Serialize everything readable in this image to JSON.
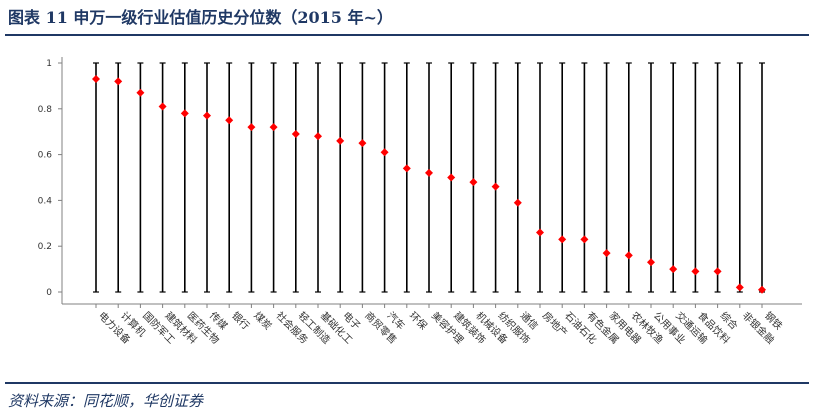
{
  "title": "图表 11    申万一级行业估值历史分位数（2015 年~）",
  "source": "资料来源：同花顺，华创证券",
  "colors": {
    "accent": "#1f3864",
    "marker": "#ff0000",
    "line": "#000000",
    "axis": "#808080"
  },
  "chart_data": {
    "type": "scatter",
    "title": "",
    "xlabel": "",
    "ylabel": "",
    "ylim": [
      0,
      1
    ],
    "yticks": [
      0,
      0.2,
      0.4,
      0.6,
      0.8,
      1
    ],
    "ytick_labels": [
      "0",
      "0.2",
      "0.4",
      "0.6",
      "0.8",
      "1"
    ],
    "grid": false,
    "range_lines": [
      0,
      1
    ],
    "categories": [
      "电力设备",
      "计算机",
      "国防军工",
      "建筑材料",
      "医药生物",
      "传媒",
      "银行",
      "煤炭",
      "社会服务",
      "轻工制造",
      "基础化工",
      "电子",
      "商贸零售",
      "汽车",
      "环保",
      "美容护理",
      "建筑装饰",
      "机械设备",
      "纺织服饰",
      "通信",
      "房地产",
      "石油石化",
      "有色金属",
      "家用电器",
      "农林牧渔",
      "公用事业",
      "交通运输",
      "食品饮料",
      "综合",
      "非银金融",
      "钢铁"
    ],
    "values": [
      0.93,
      0.92,
      0.87,
      0.81,
      0.78,
      0.77,
      0.75,
      0.72,
      0.72,
      0.69,
      0.68,
      0.66,
      0.65,
      0.61,
      0.54,
      0.52,
      0.5,
      0.48,
      0.46,
      0.39,
      0.26,
      0.23,
      0.23,
      0.17,
      0.16,
      0.13,
      0.1,
      0.09,
      0.09,
      0.02,
      0.01
    ]
  }
}
